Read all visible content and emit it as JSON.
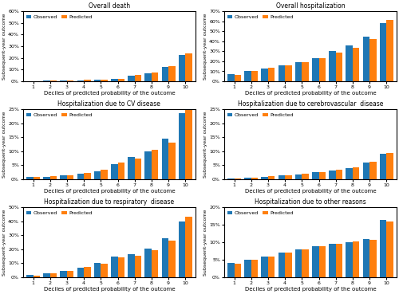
{
  "chart_data": [
    {
      "type": "bar",
      "title": "Overall death",
      "xlabel": "Deciles of predicted probability of the outcome",
      "ylabel": "Subsequent-year outcome",
      "categories": [
        "1",
        "2",
        "3",
        "4",
        "5",
        "6",
        "7",
        "8",
        "9",
        "10"
      ],
      "series": [
        {
          "name": "Observed",
          "values": [
            0.003,
            0.004,
            0.007,
            0.01,
            0.015,
            0.02,
            0.05,
            0.07,
            0.12,
            0.225
          ]
        },
        {
          "name": "Predicted",
          "values": [
            0.003,
            0.005,
            0.008,
            0.012,
            0.017,
            0.023,
            0.055,
            0.075,
            0.13,
            0.24
          ]
        }
      ],
      "ylim": [
        0,
        0.6
      ],
      "yticks": [
        {
          "value": 0.0,
          "label": "0%"
        },
        {
          "value": 0.1,
          "label": "10%"
        },
        {
          "value": 0.2,
          "label": "20%"
        },
        {
          "value": 0.3,
          "label": "30%"
        },
        {
          "value": 0.4,
          "label": "40%"
        },
        {
          "value": 0.5,
          "label": "50%"
        },
        {
          "value": 0.6,
          "label": "60%"
        }
      ],
      "legend": "upper left"
    },
    {
      "type": "bar",
      "title": "Overall hospitalization",
      "xlabel": "Deciles of predicted probability of the outcome",
      "ylabel": "Subsequent-year outcome",
      "categories": [
        "1",
        "2",
        "3",
        "4",
        "5",
        "6",
        "7",
        "8",
        "9",
        "10"
      ],
      "series": [
        {
          "name": "Observed",
          "values": [
            0.075,
            0.1,
            0.13,
            0.16,
            0.195,
            0.23,
            0.3,
            0.36,
            0.445,
            0.58
          ]
        },
        {
          "name": "Predicted",
          "values": [
            0.068,
            0.1,
            0.135,
            0.162,
            0.192,
            0.232,
            0.285,
            0.335,
            0.425,
            0.61
          ]
        }
      ],
      "ylim": [
        0,
        0.7
      ],
      "yticks": [
        {
          "value": 0.0,
          "label": "0%"
        },
        {
          "value": 0.1,
          "label": "10%"
        },
        {
          "value": 0.2,
          "label": "20%"
        },
        {
          "value": 0.3,
          "label": "30%"
        },
        {
          "value": 0.4,
          "label": "40%"
        },
        {
          "value": 0.5,
          "label": "50%"
        },
        {
          "value": 0.6,
          "label": "60%"
        },
        {
          "value": 0.7,
          "label": "70%"
        }
      ],
      "legend": "upper left"
    },
    {
      "type": "bar",
      "title": "Hospitalization due to CV disease",
      "xlabel": "Deciles of predicted probability of the outcome",
      "ylabel": "Subsequent-year outcome",
      "categories": [
        "1",
        "2",
        "3",
        "4",
        "5",
        "6",
        "7",
        "8",
        "9",
        "10"
      ],
      "series": [
        {
          "name": "Observed",
          "values": [
            0.008,
            0.01,
            0.013,
            0.02,
            0.03,
            0.055,
            0.08,
            0.1,
            0.145,
            0.235
          ]
        },
        {
          "name": "Predicted",
          "values": [
            0.008,
            0.011,
            0.015,
            0.022,
            0.033,
            0.06,
            0.075,
            0.105,
            0.13,
            0.25
          ]
        }
      ],
      "ylim": [
        0,
        0.25
      ],
      "yticks": [
        {
          "value": 0.0,
          "label": "0%"
        },
        {
          "value": 0.05,
          "label": "5%"
        },
        {
          "value": 0.1,
          "label": "10%"
        },
        {
          "value": 0.15,
          "label": "15%"
        },
        {
          "value": 0.2,
          "label": "20%"
        },
        {
          "value": 0.25,
          "label": "25%"
        }
      ],
      "legend": "upper left"
    },
    {
      "type": "bar",
      "title": "Hospitalization due to cerebrovascular  disease",
      "xlabel": "Deciles of predicted probability of the outcome",
      "ylabel": "Subsequent-year outcome",
      "categories": [
        "1",
        "2",
        "3",
        "4",
        "5",
        "6",
        "7",
        "8",
        "9",
        "10"
      ],
      "series": [
        {
          "name": "Observed",
          "values": [
            0.004,
            0.007,
            0.01,
            0.013,
            0.018,
            0.025,
            0.032,
            0.04,
            0.06,
            0.092
          ]
        },
        {
          "name": "Predicted",
          "values": [
            0.004,
            0.007,
            0.011,
            0.014,
            0.019,
            0.026,
            0.033,
            0.042,
            0.062,
            0.095
          ]
        }
      ],
      "ylim": [
        0,
        0.25
      ],
      "yticks": [
        {
          "value": 0.0,
          "label": "0%"
        },
        {
          "value": 0.05,
          "label": "5%"
        },
        {
          "value": 0.1,
          "label": "10%"
        },
        {
          "value": 0.15,
          "label": "15%"
        },
        {
          "value": 0.2,
          "label": "20%"
        },
        {
          "value": 0.25,
          "label": "25%"
        }
      ],
      "legend": "upper left"
    },
    {
      "type": "bar",
      "title": "Hospitalization due to respiratory  disease",
      "xlabel": "Deciles of predicted probability of the outcome",
      "ylabel": "Subsequent-year outcome",
      "categories": [
        "1",
        "2",
        "3",
        "4",
        "5",
        "6",
        "7",
        "8",
        "9",
        "10"
      ],
      "series": [
        {
          "name": "Observed",
          "values": [
            0.015,
            0.03,
            0.045,
            0.07,
            0.1,
            0.15,
            0.165,
            0.205,
            0.28,
            0.4
          ]
        },
        {
          "name": "Predicted",
          "values": [
            0.012,
            0.028,
            0.048,
            0.072,
            0.095,
            0.14,
            0.155,
            0.195,
            0.26,
            0.43
          ]
        }
      ],
      "ylim": [
        0,
        0.5
      ],
      "yticks": [
        {
          "value": 0.0,
          "label": "0%"
        },
        {
          "value": 0.1,
          "label": "10%"
        },
        {
          "value": 0.2,
          "label": "20%"
        },
        {
          "value": 0.3,
          "label": "30%"
        },
        {
          "value": 0.4,
          "label": "40%"
        },
        {
          "value": 0.5,
          "label": "50%"
        }
      ],
      "legend": "upper left"
    },
    {
      "type": "bar",
      "title": "Hospitalization due to other reasons",
      "xlabel": "Deciles of predicted probability of the outcome",
      "ylabel": "Subsequent-year outcome",
      "categories": [
        "1",
        "2",
        "3",
        "4",
        "5",
        "6",
        "7",
        "8",
        "9",
        "10"
      ],
      "series": [
        {
          "name": "Observed",
          "values": [
            0.04,
            0.05,
            0.06,
            0.07,
            0.08,
            0.09,
            0.095,
            0.1,
            0.11,
            0.165
          ]
        },
        {
          "name": "Predicted",
          "values": [
            0.038,
            0.05,
            0.06,
            0.07,
            0.08,
            0.09,
            0.096,
            0.102,
            0.108,
            0.16
          ]
        }
      ],
      "ylim": [
        0,
        0.2
      ],
      "yticks": [
        {
          "value": 0.0,
          "label": "0%"
        },
        {
          "value": 0.05,
          "label": "5%"
        },
        {
          "value": 0.1,
          "label": "10%"
        },
        {
          "value": 0.15,
          "label": "15%"
        },
        {
          "value": 0.2,
          "label": "20%"
        }
      ],
      "legend": "upper left"
    }
  ]
}
